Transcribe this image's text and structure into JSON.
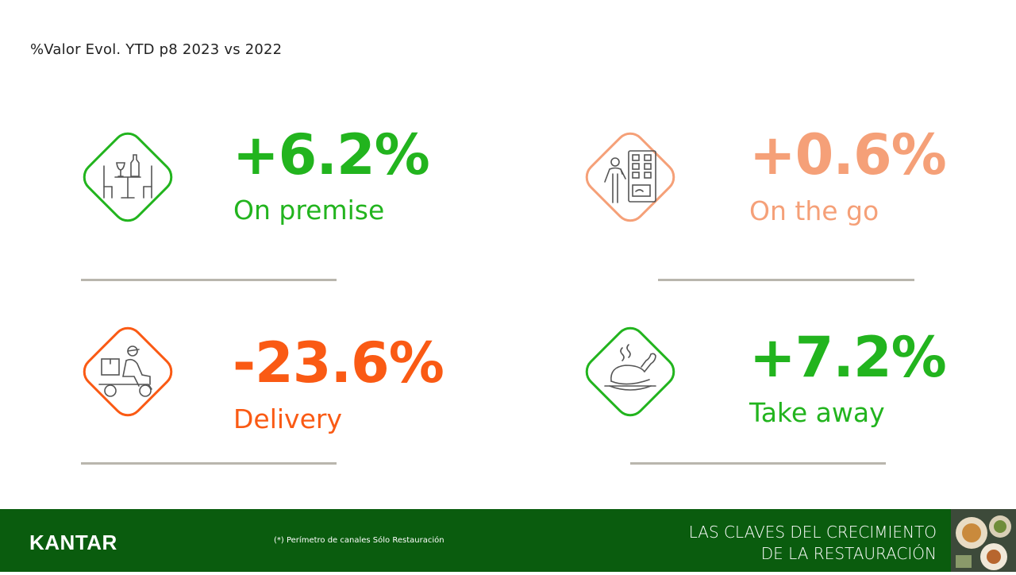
{
  "subtitle": "%Valor Evol. YTD p8 2023 vs 2022",
  "metrics": [
    {
      "value": "+6.2%",
      "label": "On premise",
      "color": "#22b41e",
      "icon": "restaurant-table-icon"
    },
    {
      "value": "+0.6%",
      "label": "On the go",
      "color": "#f5a078",
      "icon": "vending-machine-person-icon"
    },
    {
      "value": "-23.6%",
      "label": "Delivery",
      "color": "#fa5a14",
      "icon": "delivery-scooter-icon"
    },
    {
      "value": "+7.2%",
      "label": "Take away",
      "color": "#22b41e",
      "icon": "roast-chicken-icon"
    }
  ],
  "footer": {
    "brand": "KANTAR",
    "note": "(*) Perímetro de canales Sólo Restauración",
    "title_line1": "LAS CLAVES DEL CRECIMIENTO",
    "title_line2": "DE LA RESTAURACIÓN",
    "background": "#0a5c0e"
  }
}
